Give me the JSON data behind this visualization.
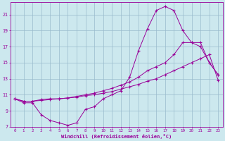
{
  "xlabel": "Windchill (Refroidissement éolien,°C)",
  "background_color": "#cce8ee",
  "grid_color": "#99bbcc",
  "line_color": "#990099",
  "xlim": [
    -0.5,
    23.5
  ],
  "ylim": [
    7,
    22.5
  ],
  "xticks": [
    0,
    1,
    2,
    3,
    4,
    5,
    6,
    7,
    8,
    9,
    10,
    11,
    12,
    13,
    14,
    15,
    16,
    17,
    18,
    19,
    20,
    21,
    22,
    23
  ],
  "yticks": [
    7,
    9,
    11,
    13,
    15,
    17,
    19,
    21
  ],
  "line1_x": [
    0,
    1,
    2,
    3,
    4,
    5,
    6,
    7,
    8,
    9,
    10,
    11,
    12,
    13,
    14,
    15,
    16,
    17,
    18,
    19,
    20,
    21,
    22,
    23
  ],
  "line1_y": [
    10.5,
    10.0,
    10.0,
    8.5,
    7.8,
    7.5,
    7.2,
    7.5,
    9.2,
    9.5,
    10.5,
    11.0,
    11.5,
    13.2,
    16.5,
    19.2,
    21.5,
    22.0,
    21.5,
    19.0,
    17.5,
    17.5,
    15.0,
    13.5
  ],
  "line2_x": [
    0,
    1,
    2,
    3,
    4,
    5,
    6,
    7,
    8,
    9,
    10,
    11,
    12,
    13,
    14,
    15,
    16,
    17,
    18,
    19,
    20,
    21,
    22,
    23
  ],
  "line2_y": [
    10.5,
    10.2,
    10.2,
    10.4,
    10.5,
    10.5,
    10.6,
    10.8,
    11.0,
    11.2,
    11.5,
    11.8,
    12.2,
    12.6,
    13.2,
    14.0,
    14.5,
    15.0,
    16.0,
    17.5,
    17.5,
    17.0,
    15.0,
    13.5
  ],
  "line3_x": [
    0,
    1,
    2,
    3,
    4,
    5,
    6,
    7,
    8,
    9,
    10,
    11,
    12,
    13,
    14,
    15,
    16,
    17,
    18,
    19,
    20,
    21,
    22,
    23
  ],
  "line3_y": [
    10.5,
    10.2,
    10.2,
    10.3,
    10.4,
    10.5,
    10.6,
    10.7,
    10.9,
    11.0,
    11.2,
    11.4,
    11.7,
    12.0,
    12.3,
    12.7,
    13.0,
    13.5,
    14.0,
    14.5,
    15.0,
    15.5,
    16.0,
    12.8
  ]
}
